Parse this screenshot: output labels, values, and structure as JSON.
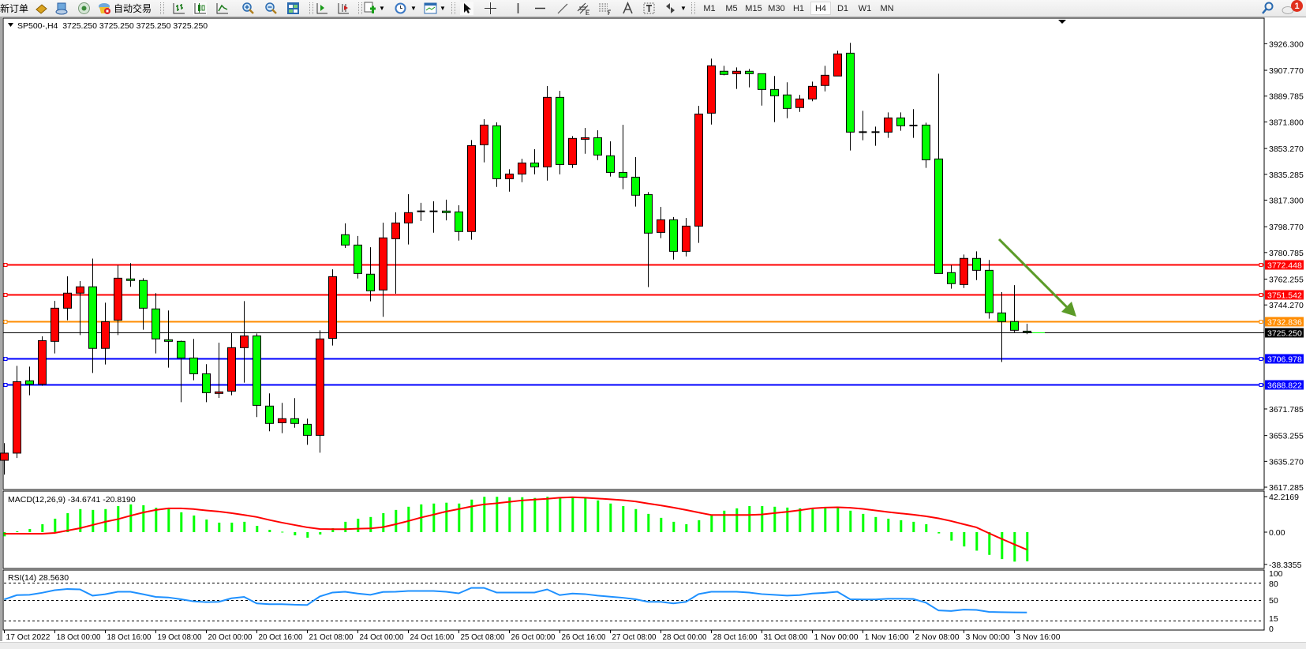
{
  "toolbar": {
    "new_order": "新订单",
    "auto_trading": "自动交易",
    "timeframes": [
      "M1",
      "M5",
      "M15",
      "M30",
      "H1",
      "H4",
      "D1",
      "W1",
      "MN"
    ],
    "active_timeframe": "H4",
    "notification_count": "1"
  },
  "chart": {
    "header": "SP500-,H4  3725.250 3725.250 3725.250 3725.250",
    "bull_color": "#ff0000",
    "bear_color": "#00ff00",
    "price_labels": [
      "3926.300",
      "3907.770",
      "3889.785",
      "3871.800",
      "3853.270",
      "3835.285",
      "3817.300",
      "3798.770",
      "3780.785",
      "3762.255",
      "3744.270",
      "3671.785",
      "3653.255",
      "3635.270",
      "3617.285"
    ],
    "levels": [
      {
        "value": "3772.448",
        "color": "#ff0000"
      },
      {
        "value": "3751.542",
        "color": "#ff0000"
      },
      {
        "value": "3732.836",
        "color": "#ff8c00"
      },
      {
        "value": "3706.978",
        "color": "#0000ff"
      },
      {
        "value": "3688.822",
        "color": "#0000ff"
      }
    ],
    "current_price": "3725.250",
    "arrow_color": "#5b9b28",
    "candles_ohlc": [
      [
        3636,
        3648,
        3626,
        3641
      ],
      [
        3641.0,
        3701.8,
        3637.6,
        3690.8
      ],
      [
        3691.4,
        3701.3,
        3681.3,
        3689.0
      ],
      [
        3689.0,
        3722.4,
        3687.9,
        3719.4
      ],
      [
        3718.9,
        3747.1,
        3710.5,
        3742.0
      ],
      [
        3742.0,
        3764.2,
        3733.6,
        3752.5
      ],
      [
        3752.5,
        3760.9,
        3723.3,
        3756.9
      ],
      [
        3756.9,
        3776.6,
        3696.9,
        3714.0
      ],
      [
        3714.0,
        3745.8,
        3702.8,
        3732.6
      ],
      [
        3733.7,
        3771.9,
        3723.3,
        3762.9
      ],
      [
        3762.4,
        3773.4,
        3756.9,
        3761.3
      ],
      [
        3761.3,
        3762.9,
        3727.0,
        3742.0
      ],
      [
        3741.5,
        3752.5,
        3710.5,
        3720.6
      ],
      [
        3720.0,
        3740.4,
        3700.6,
        3718.9
      ],
      [
        3718.9,
        3719.4,
        3676.5,
        3707.3
      ],
      [
        3707.3,
        3720.6,
        3691.8,
        3696.3
      ],
      [
        3696.3,
        3703.0,
        3676.5,
        3683.1
      ],
      [
        3682.6,
        3718.0,
        3679.5,
        3683.7
      ],
      [
        3684.2,
        3724.8,
        3681.3,
        3714.5
      ],
      [
        3714.5,
        3746.9,
        3690.1,
        3722.7
      ],
      [
        3722.7,
        3724.4,
        3666.1,
        3674.3
      ],
      [
        3673.8,
        3682.6,
        3656.2,
        3661.7
      ],
      [
        3662.2,
        3676.0,
        3654.9,
        3665.0
      ],
      [
        3665.0,
        3679.3,
        3658.7,
        3661.7
      ],
      [
        3661.1,
        3665.0,
        3646.8,
        3653.4
      ],
      [
        3653.4,
        3726.6,
        3641.3,
        3720.6
      ],
      [
        3721.0,
        3769.1,
        3716.0,
        3764.0
      ],
      [
        3793.2,
        3801.1,
        3784.0,
        3786.0
      ],
      [
        3786.0,
        3792.3,
        3762.7,
        3766.2
      ],
      [
        3765.7,
        3784.5,
        3746.8,
        3754.1
      ],
      [
        3754.7,
        3801.6,
        3736.0,
        3791.0
      ],
      [
        3790.4,
        3808.8,
        3752.1,
        3801.4
      ],
      [
        3801.4,
        3821.4,
        3786.4,
        3808.6
      ],
      [
        3809.5,
        3815.4,
        3802.7,
        3809.5
      ],
      [
        3809.5,
        3816.5,
        3794.6,
        3809.5
      ],
      [
        3809.7,
        3817.6,
        3803.2,
        3808.6
      ],
      [
        3809.1,
        3813.7,
        3789.1,
        3795.4
      ],
      [
        3795.4,
        3859.2,
        3789.7,
        3855.3
      ],
      [
        3855.9,
        3873.7,
        3843.6,
        3869.6
      ],
      [
        3869.1,
        3871.5,
        3826.5,
        3832.2
      ],
      [
        3832.2,
        3838.8,
        3823.2,
        3835.5
      ],
      [
        3835.5,
        3846.2,
        3829.8,
        3843.2
      ],
      [
        3843.2,
        3852.8,
        3835.3,
        3840.5
      ],
      [
        3840.5,
        3896.8,
        3830.9,
        3888.9
      ],
      [
        3888.9,
        3893.5,
        3835.3,
        3842.1
      ],
      [
        3842.1,
        3861.9,
        3839.7,
        3860.3
      ],
      [
        3859.7,
        3867.6,
        3849.6,
        3860.8
      ],
      [
        3860.8,
        3866.0,
        3845.2,
        3848.7
      ],
      [
        3848.2,
        3858.3,
        3833.7,
        3836.6
      ],
      [
        3836.6,
        3869.8,
        3824.9,
        3833.3
      ],
      [
        3833.3,
        3847.3,
        3812.8,
        3820.7
      ],
      [
        3821.2,
        3822.9,
        3756.7,
        3794.3
      ],
      [
        3794.8,
        3812.6,
        3790.8,
        3803.6
      ],
      [
        3803.6,
        3805.5,
        3775.9,
        3781.6
      ],
      [
        3781.6,
        3804.9,
        3778.1,
        3799.2
      ],
      [
        3799.2,
        3883.0,
        3787.5,
        3877.3
      ],
      [
        3877.9,
        3915.9,
        3870.0,
        3910.9
      ],
      [
        3907.1,
        3910.9,
        3904.3,
        3904.9
      ],
      [
        3905.4,
        3909.8,
        3894.8,
        3907.1
      ],
      [
        3907.1,
        3908.7,
        3895.9,
        3905.4
      ],
      [
        3905.4,
        3905.4,
        3883.2,
        3894.4
      ],
      [
        3894.4,
        3903.8,
        3871.7,
        3890.0
      ],
      [
        3890.6,
        3899.4,
        3874.4,
        3881.2
      ],
      [
        3881.8,
        3890.6,
        3878.8,
        3887.8
      ],
      [
        3887.8,
        3899.9,
        3886.2,
        3896.6
      ],
      [
        3897.2,
        3910.9,
        3893.1,
        3904.3
      ],
      [
        3903.8,
        3921.4,
        3903.8,
        3919.2
      ],
      [
        3919.7,
        3926.9,
        3851.9,
        3864.7
      ],
      [
        3864.7,
        3879.5,
        3859.0,
        3864.7
      ],
      [
        3864.7,
        3868.5,
        3855.2,
        3864.7
      ],
      [
        3864.7,
        3878.4,
        3860.7,
        3874.6
      ],
      [
        3874.6,
        3878.4,
        3865.6,
        3869.1
      ],
      [
        3869.3,
        3880.7,
        3860.7,
        3869.3
      ],
      [
        3869.6,
        3871.3,
        3839.8,
        3845.4
      ],
      [
        3846.0,
        3905.4,
        3766.2,
        3766.2
      ],
      [
        3766.8,
        3772.1,
        3755.6,
        3759.1
      ],
      [
        3758.5,
        3779.4,
        3756.1,
        3776.7
      ],
      [
        3776.7,
        3781.6,
        3761.6,
        3768.4
      ],
      [
        3768.4,
        3775.6,
        3734.7,
        3738.9
      ],
      [
        3738.7,
        3753.2,
        3704.5,
        3732.7
      ],
      [
        3732.7,
        3758.1,
        3725.3,
        3726.6
      ],
      [
        3726.0,
        3731.2,
        3723.9,
        3725.25
      ]
    ],
    "time_labels": [
      "17 Oct 2022",
      "18 Oct 00:00",
      "18 Oct 16:00",
      "19 Oct 08:00",
      "20 Oct 00:00",
      "20 Oct 16:00",
      "21 Oct 08:00",
      "24 Oct 00:00",
      "24 Oct 16:00",
      "25 Oct 08:00",
      "26 Oct 00:00",
      "26 Oct 16:00",
      "27 Oct 08:00",
      "28 Oct 00:00",
      "28 Oct 16:00",
      "31 Oct 08:00",
      "1 Nov 00:00",
      "1 Nov 16:00",
      "2 Nov 08:00",
      "3 Nov 00:00",
      "3 Nov 16:00"
    ]
  },
  "macd": {
    "label": "MACD(12,26,9) -34.6741 -20.8190",
    "axis_labels": [
      "42.2169",
      "0.00",
      "-38.3355"
    ],
    "hist_color": "#00ff00",
    "signal_color": "#ff0000",
    "histogram": [
      -5,
      1,
      3.8,
      9.4,
      16,
      22.6,
      27.4,
      26.4,
      27.4,
      31,
      33,
      32,
      29,
      27.4,
      23.6,
      19.8,
      15,
      11.3,
      11.3,
      12.3,
      7.5,
      2.8,
      0.5,
      -3.8,
      -6.6,
      -2.8,
      4.7,
      12.3,
      16,
      18,
      22.6,
      26.4,
      30.2,
      33,
      34,
      35,
      34,
      38.7,
      42,
      42,
      41.5,
      41.5,
      40.6,
      42,
      41.5,
      41.5,
      40.6,
      37.7,
      34,
      31,
      27.4,
      21.7,
      17,
      12.3,
      9.4,
      14.2,
      19.8,
      25.5,
      28.3,
      31,
      31,
      30.2,
      29.2,
      28.3,
      27.4,
      28.3,
      29.2,
      25.5,
      21.7,
      18,
      16,
      14.2,
      12.3,
      9.4,
      -1.5,
      -10,
      -17,
      -22,
      -27,
      -32,
      -35,
      -34.67
    ],
    "signal": [
      -1.9,
      -1.9,
      -1.9,
      -1.9,
      -0.9,
      1.9,
      4.7,
      8.5,
      12.3,
      15.4,
      19.5,
      23.3,
      26.4,
      28.3,
      28.3,
      27.4,
      25.8,
      24.5,
      22.6,
      20.4,
      18,
      14.5,
      11.3,
      8.5,
      5.7,
      3.8,
      3.5,
      3.5,
      4.1,
      4.4,
      6,
      9.4,
      13.2,
      17.3,
      20.8,
      24.5,
      27.4,
      30.5,
      33,
      34.3,
      36,
      37.7,
      38.7,
      39.6,
      40.9,
      41.5,
      40.9,
      40,
      39,
      38,
      36.5,
      34,
      31.8,
      29.2,
      26.4,
      23.3,
      20.4,
      20.4,
      20.4,
      20.4,
      21,
      22.6,
      24.2,
      26,
      28.3,
      29.2,
      29.5,
      29,
      27.7,
      25.8,
      23.9,
      22.3,
      20.8,
      18.9,
      16.4,
      13.2,
      9.4,
      5.7,
      -1.3,
      -8,
      -14.5,
      -20.82
    ]
  },
  "rsi": {
    "label": "RSI(14) 28.5630",
    "axis_labels": [
      "100",
      "80",
      "50",
      "15",
      "0"
    ],
    "color": "#1e90ff",
    "values": [
      51,
      58.5,
      59,
      62.5,
      67,
      69,
      68.4,
      57.6,
      60,
      64.3,
      64.3,
      60,
      55.4,
      54.5,
      51.3,
      47.8,
      46.4,
      46.9,
      53,
      55.4,
      44.2,
      42.8,
      42.8,
      41.9,
      41.5,
      56.3,
      63,
      64.3,
      61.2,
      59,
      63.9,
      64.3,
      65.7,
      65.7,
      65.7,
      64.3,
      61.6,
      71,
      71,
      63,
      63,
      63,
      63,
      68.4,
      58.5,
      61.2,
      60.3,
      57.6,
      55.8,
      54,
      51.3,
      46.9,
      46.9,
      44.2,
      46.9,
      60.3,
      64.3,
      64.3,
      64.3,
      63,
      60.3,
      59,
      57.6,
      58.5,
      61.2,
      62.5,
      64.3,
      51.3,
      51,
      51,
      52.2,
      52.2,
      51.8,
      45.5,
      32,
      31,
      33.5,
      33,
      29.5,
      29,
      28.7,
      28.563
    ]
  }
}
